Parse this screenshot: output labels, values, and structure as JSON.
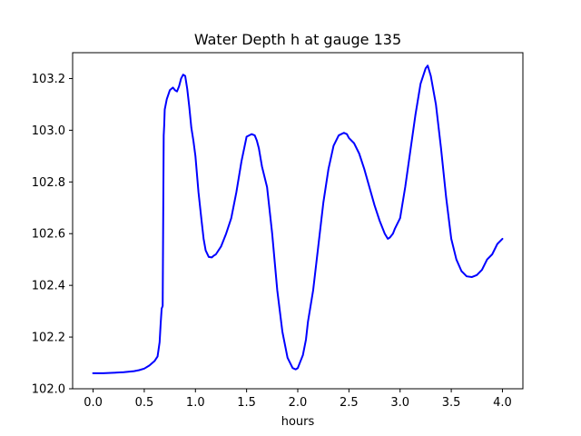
{
  "chart_data": {
    "type": "line",
    "title": "Water Depth h at gauge 135",
    "xlabel": "hours",
    "ylabel": "",
    "xlim": [
      -0.2,
      4.2
    ],
    "ylim": [
      102.0,
      103.3
    ],
    "xticks": [
      0.0,
      0.5,
      1.0,
      1.5,
      2.0,
      2.5,
      3.0,
      3.5,
      4.0
    ],
    "xtick_labels": [
      "0.0",
      "0.5",
      "1.0",
      "1.5",
      "2.0",
      "2.5",
      "3.0",
      "3.5",
      "4.0"
    ],
    "yticks": [
      102.0,
      102.2,
      102.4,
      102.6,
      102.8,
      103.0,
      103.2
    ],
    "ytick_labels": [
      "102.0",
      "102.2",
      "102.4",
      "102.6",
      "102.8",
      "103.0",
      "103.2"
    ],
    "grid": false,
    "legend": "none",
    "series": [
      {
        "color": "#0000ff",
        "x": [
          0.0,
          0.1,
          0.2,
          0.3,
          0.4,
          0.45,
          0.5,
          0.55,
          0.6,
          0.63,
          0.65,
          0.66,
          0.67,
          0.68,
          0.69,
          0.695,
          0.7,
          0.72,
          0.75,
          0.78,
          0.8,
          0.82,
          0.84,
          0.86,
          0.88,
          0.9,
          0.92,
          0.94,
          0.96,
          0.98,
          1.0,
          1.03,
          1.06,
          1.08,
          1.1,
          1.13,
          1.16,
          1.18,
          1.2,
          1.25,
          1.3,
          1.35,
          1.4,
          1.45,
          1.5,
          1.55,
          1.58,
          1.6,
          1.62,
          1.65,
          1.7,
          1.75,
          1.8,
          1.85,
          1.9,
          1.95,
          1.98,
          2.0,
          2.03,
          2.05,
          2.08,
          2.1,
          2.15,
          2.2,
          2.25,
          2.3,
          2.35,
          2.4,
          2.45,
          2.48,
          2.5,
          2.55,
          2.6,
          2.65,
          2.7,
          2.75,
          2.8,
          2.85,
          2.88,
          2.9,
          2.93,
          2.95,
          3.0,
          3.05,
          3.1,
          3.15,
          3.2,
          3.25,
          3.27,
          3.3,
          3.35,
          3.4,
          3.45,
          3.5,
          3.55,
          3.6,
          3.65,
          3.7,
          3.75,
          3.8,
          3.85,
          3.9,
          3.95,
          4.0
        ],
        "y": [
          102.06,
          102.06,
          102.062,
          102.064,
          102.068,
          102.072,
          102.078,
          102.09,
          102.107,
          102.125,
          102.18,
          102.25,
          102.31,
          102.32,
          102.98,
          103.02,
          103.08,
          103.12,
          103.155,
          103.165,
          103.155,
          103.15,
          103.17,
          103.2,
          103.215,
          103.21,
          103.16,
          103.09,
          103.01,
          102.96,
          102.9,
          102.76,
          102.65,
          102.58,
          102.535,
          102.51,
          102.508,
          102.515,
          102.52,
          102.55,
          102.6,
          102.66,
          102.76,
          102.88,
          102.975,
          102.985,
          102.98,
          102.96,
          102.93,
          102.86,
          102.78,
          102.6,
          102.38,
          102.22,
          102.12,
          102.08,
          102.075,
          102.08,
          102.11,
          102.13,
          102.19,
          102.26,
          102.38,
          102.55,
          102.72,
          102.85,
          102.94,
          102.98,
          102.99,
          102.985,
          102.97,
          102.95,
          102.91,
          102.85,
          102.78,
          102.71,
          102.65,
          102.6,
          102.58,
          102.585,
          102.6,
          102.62,
          102.66,
          102.78,
          102.92,
          103.06,
          103.18,
          103.24,
          103.25,
          103.21,
          103.1,
          102.93,
          102.74,
          102.58,
          102.5,
          102.455,
          102.435,
          102.432,
          102.44,
          102.46,
          102.5,
          102.52,
          102.56,
          102.58
        ]
      }
    ]
  }
}
